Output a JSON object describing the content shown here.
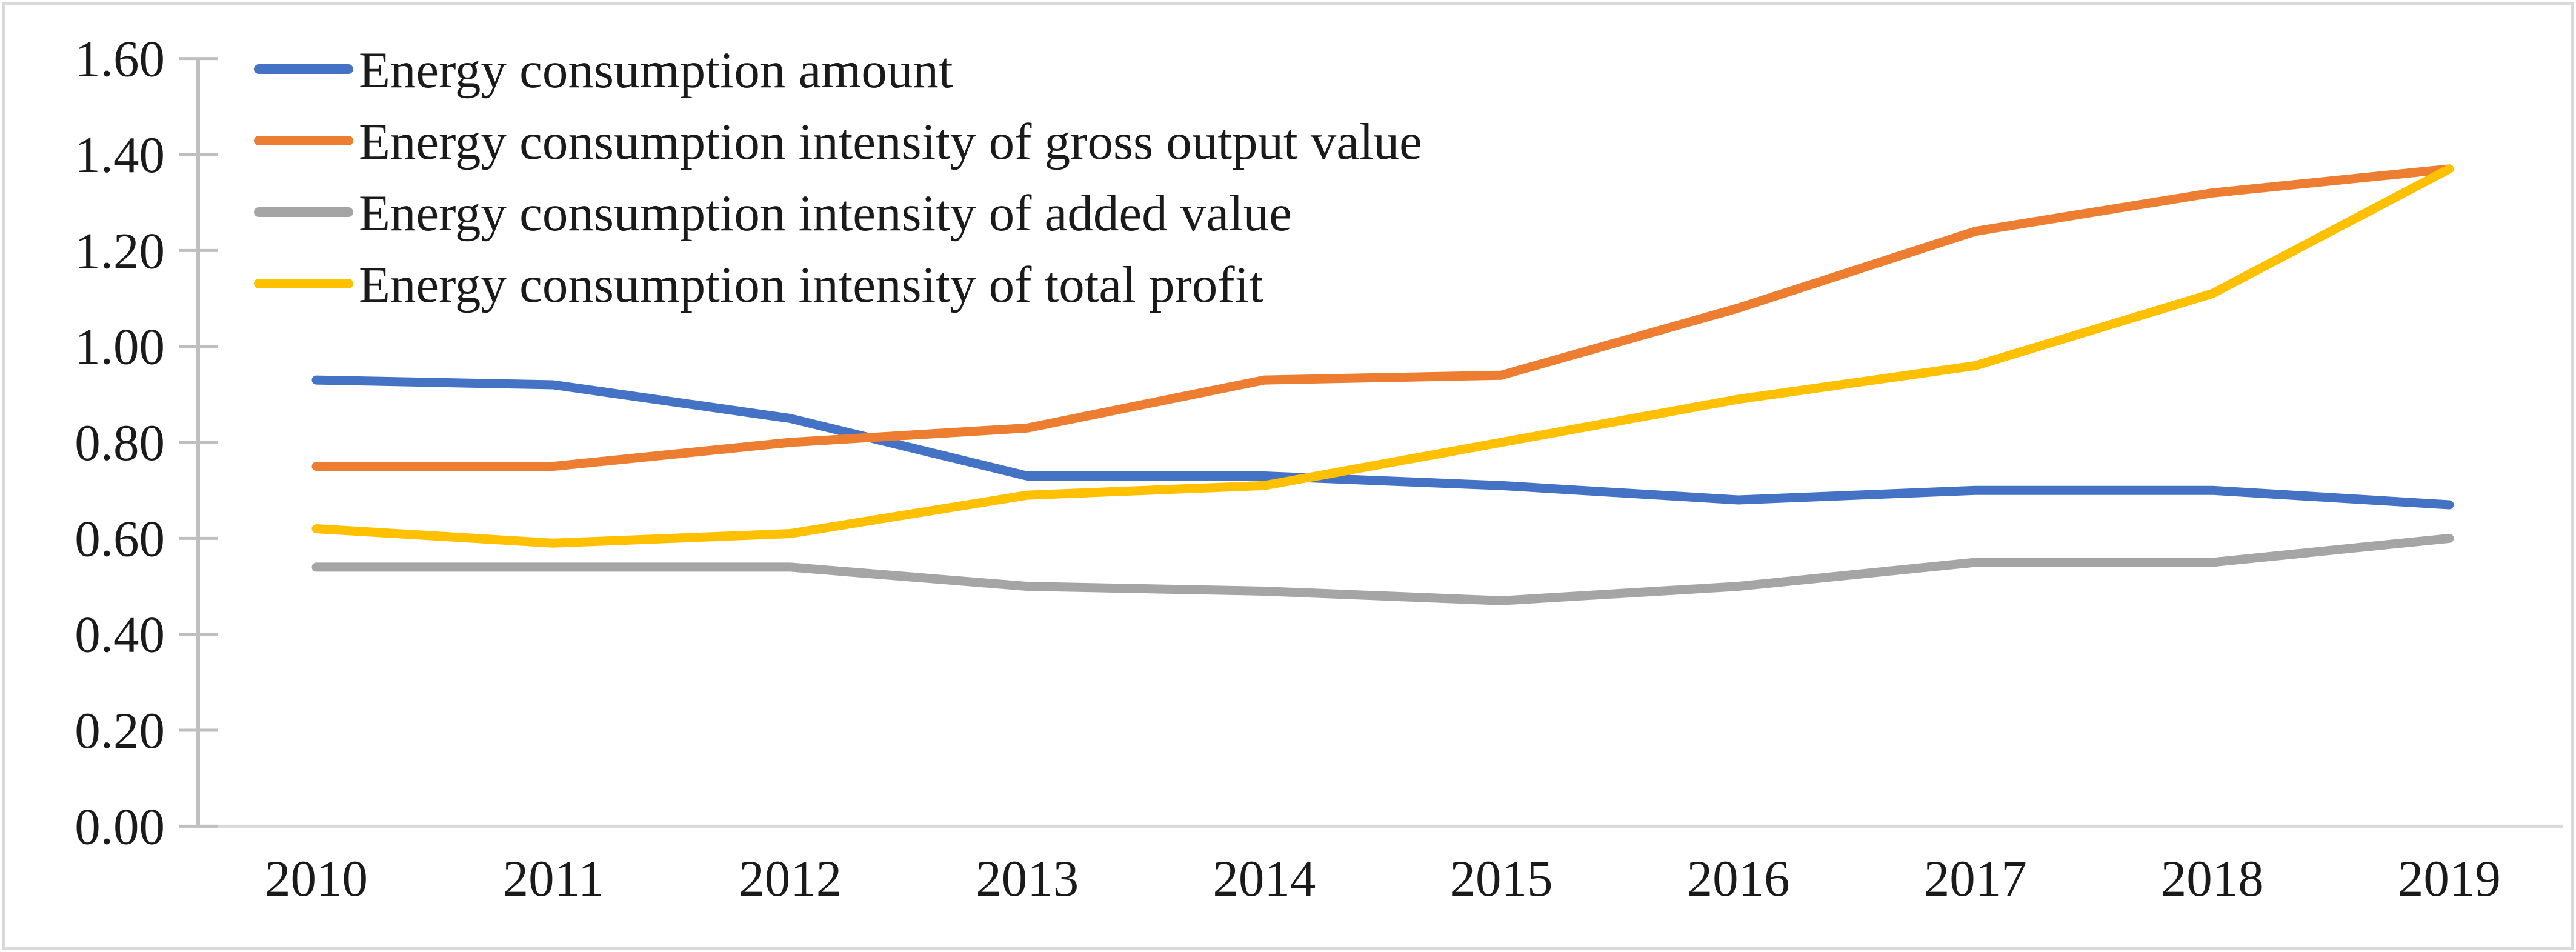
{
  "chart_data": {
    "type": "line",
    "title": "",
    "xlabel": "",
    "ylabel": "",
    "categories": [
      "2010",
      "2011",
      "2012",
      "2013",
      "2014",
      "2015",
      "2016",
      "2017",
      "2018",
      "2019"
    ],
    "series": [
      {
        "name": "Energy consumption amount",
        "color": "#4472C4",
        "values": [
          0.93,
          0.92,
          0.85,
          0.73,
          0.73,
          0.71,
          0.68,
          0.7,
          0.7,
          0.67
        ]
      },
      {
        "name": "Energy consumption intensity of gross output value",
        "color": "#ED7D31",
        "values": [
          0.75,
          0.75,
          0.8,
          0.83,
          0.93,
          0.94,
          1.08,
          1.24,
          1.32,
          1.37
        ]
      },
      {
        "name": "Energy consumption intensity of added value",
        "color": "#A5A5A5",
        "values": [
          0.54,
          0.54,
          0.54,
          0.5,
          0.49,
          0.47,
          0.5,
          0.55,
          0.55,
          0.6
        ]
      },
      {
        "name": "Energy consumption intensity of total profit",
        "color": "#FFC000",
        "values": [
          0.62,
          0.59,
          0.61,
          0.69,
          0.71,
          0.8,
          0.89,
          0.96,
          1.11,
          1.37
        ]
      }
    ],
    "ylim": [
      0.0,
      1.6
    ],
    "ytick_step": 0.2,
    "ytick_labels": [
      "0.00",
      "0.20",
      "0.40",
      "0.60",
      "0.80",
      "1.00",
      "1.20",
      "1.40",
      "1.60"
    ],
    "grid": "off",
    "legend_position": "top-left-inside",
    "axis_color": "#BFBFBF",
    "baseline_color": "#D9D9D9",
    "border_color": "#D9D9D9",
    "text_color": "#1a1a1a"
  }
}
